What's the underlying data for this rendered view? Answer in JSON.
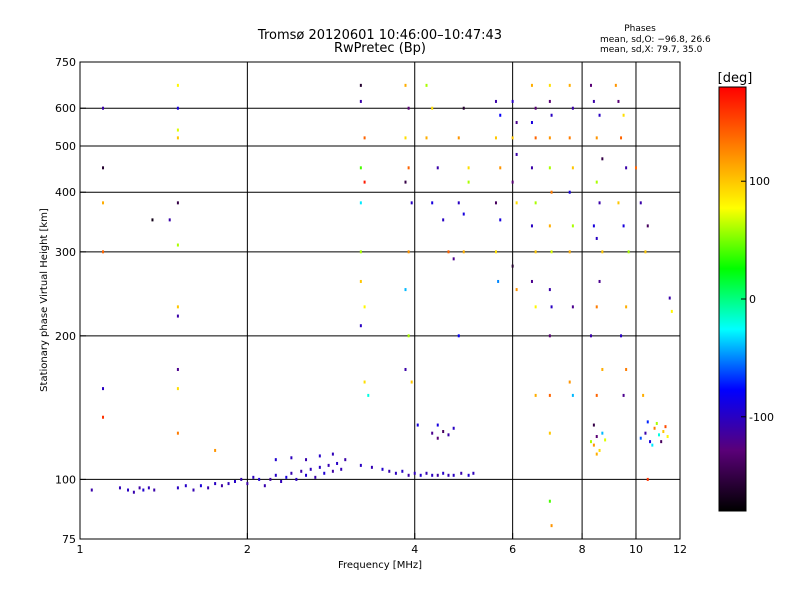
{
  "header": {
    "title_line1": "Tromsø 20120601 10:46:00–10:47:43",
    "title_line2": "RwPretec (Bp)",
    "phases_label": "Phases",
    "phases_line1": "mean, sd,O: −96.8, 26.6",
    "phases_line2": "mean, sd,X:  79.7, 35.0"
  },
  "chart_data": {
    "type": "scatter",
    "xlabel": "Frequency [MHz]",
    "ylabel": "Stationary phase Virtual Height [km]",
    "xscale": "log",
    "yscale": "log",
    "xlim": [
      1,
      12
    ],
    "ylim": [
      75,
      750
    ],
    "x_ticks": [
      1,
      2,
      4,
      6,
      8,
      10,
      12
    ],
    "y_ticks": [
      75,
      100,
      200,
      300,
      400,
      500,
      600,
      750
    ],
    "grid_x": [
      2,
      4,
      6,
      8,
      10
    ],
    "grid_y": [
      100,
      200,
      300,
      400,
      500,
      600
    ],
    "colorbar": {
      "label": "[deg]",
      "range": [
        -180,
        180
      ],
      "ticks": [
        100,
        0,
        -100
      ],
      "colors": [
        "#000000",
        "#5a0078",
        "#0000ff",
        "#00ffff",
        "#00ff00",
        "#ffff00",
        "#ff8000",
        "#ff0000"
      ]
    },
    "points": [
      {
        "x": 1.05,
        "y": 95,
        "p": -110
      },
      {
        "x": 1.18,
        "y": 96,
        "p": -105
      },
      {
        "x": 1.22,
        "y": 95,
        "p": -100
      },
      {
        "x": 1.25,
        "y": 94,
        "p": -108
      },
      {
        "x": 1.28,
        "y": 96,
        "p": -112
      },
      {
        "x": 1.3,
        "y": 95,
        "p": -95
      },
      {
        "x": 1.33,
        "y": 96,
        "p": -104
      },
      {
        "x": 1.36,
        "y": 95,
        "p": -110
      },
      {
        "x": 1.5,
        "y": 96,
        "p": -100
      },
      {
        "x": 1.55,
        "y": 97,
        "p": -98
      },
      {
        "x": 1.6,
        "y": 95,
        "p": -106
      },
      {
        "x": 1.65,
        "y": 97,
        "p": -92
      },
      {
        "x": 1.7,
        "y": 96,
        "p": -108
      },
      {
        "x": 1.75,
        "y": 98,
        "p": -100
      },
      {
        "x": 1.8,
        "y": 97,
        "p": -112
      },
      {
        "x": 1.85,
        "y": 98,
        "p": -104
      },
      {
        "x": 1.9,
        "y": 99,
        "p": -98
      },
      {
        "x": 1.95,
        "y": 100,
        "p": -106
      },
      {
        "x": 2.0,
        "y": 98,
        "p": -110
      },
      {
        "x": 2.05,
        "y": 101,
        "p": -102
      },
      {
        "x": 2.1,
        "y": 100,
        "p": -95
      },
      {
        "x": 2.15,
        "y": 97,
        "p": -108
      },
      {
        "x": 2.2,
        "y": 100,
        "p": -112
      },
      {
        "x": 2.25,
        "y": 102,
        "p": -99
      },
      {
        "x": 2.3,
        "y": 99,
        "p": -104
      },
      {
        "x": 2.35,
        "y": 101,
        "p": -90
      },
      {
        "x": 2.4,
        "y": 103,
        "p": -107
      },
      {
        "x": 2.45,
        "y": 100,
        "p": -101
      },
      {
        "x": 2.5,
        "y": 104,
        "p": -111
      },
      {
        "x": 2.55,
        "y": 102,
        "p": -96
      },
      {
        "x": 2.6,
        "y": 105,
        "p": -103
      },
      {
        "x": 2.65,
        "y": 101,
        "p": -109
      },
      {
        "x": 2.7,
        "y": 106,
        "p": -100
      },
      {
        "x": 2.75,
        "y": 103,
        "p": -94
      },
      {
        "x": 2.8,
        "y": 107,
        "p": -106
      },
      {
        "x": 2.85,
        "y": 104,
        "p": -112
      },
      {
        "x": 2.9,
        "y": 108,
        "p": -99
      },
      {
        "x": 2.95,
        "y": 105,
        "p": -105
      },
      {
        "x": 2.25,
        "y": 110,
        "p": -95
      },
      {
        "x": 2.4,
        "y": 111,
        "p": -102
      },
      {
        "x": 2.55,
        "y": 110,
        "p": -108
      },
      {
        "x": 2.7,
        "y": 112,
        "p": -98
      },
      {
        "x": 2.85,
        "y": 113,
        "p": -104
      },
      {
        "x": 3.0,
        "y": 110,
        "p": -110
      },
      {
        "x": 3.2,
        "y": 107,
        "p": -100
      },
      {
        "x": 3.35,
        "y": 106,
        "p": -106
      },
      {
        "x": 3.5,
        "y": 105,
        "p": -96
      },
      {
        "x": 3.6,
        "y": 104,
        "p": -108
      },
      {
        "x": 3.7,
        "y": 103,
        "p": -102
      },
      {
        "x": 3.8,
        "y": 104,
        "p": -99
      },
      {
        "x": 3.9,
        "y": 102,
        "p": -110
      },
      {
        "x": 4.0,
        "y": 103,
        "p": -104
      },
      {
        "x": 4.1,
        "y": 102,
        "p": -97
      },
      {
        "x": 4.2,
        "y": 103,
        "p": -106
      },
      {
        "x": 4.3,
        "y": 102,
        "p": -101
      },
      {
        "x": 4.4,
        "y": 102,
        "p": -112
      },
      {
        "x": 4.5,
        "y": 103,
        "p": -98
      },
      {
        "x": 4.6,
        "y": 102,
        "p": -105
      },
      {
        "x": 4.7,
        "y": 102,
        "p": -100
      },
      {
        "x": 4.85,
        "y": 103,
        "p": -108
      },
      {
        "x": 5.0,
        "y": 102,
        "p": -95
      },
      {
        "x": 5.1,
        "y": 103,
        "p": -103
      },
      {
        "x": 4.3,
        "y": 125,
        "p": -120
      },
      {
        "x": 4.4,
        "y": 122,
        "p": -130
      },
      {
        "x": 4.5,
        "y": 126,
        "p": -140
      },
      {
        "x": 4.6,
        "y": 124,
        "p": -110
      },
      {
        "x": 4.7,
        "y": 128,
        "p": -100
      },
      {
        "x": 4.4,
        "y": 130,
        "p": -90
      },
      {
        "x": 8.3,
        "y": 120,
        "p": 60
      },
      {
        "x": 8.4,
        "y": 118,
        "p": 120
      },
      {
        "x": 8.5,
        "y": 123,
        "p": -130
      },
      {
        "x": 8.6,
        "y": 115,
        "p": 90
      },
      {
        "x": 8.7,
        "y": 125,
        "p": -40
      },
      {
        "x": 8.5,
        "y": 113,
        "p": 110
      },
      {
        "x": 8.4,
        "y": 130,
        "p": -150
      },
      {
        "x": 8.8,
        "y": 121,
        "p": 70
      },
      {
        "x": 10.2,
        "y": 122,
        "p": -60
      },
      {
        "x": 10.4,
        "y": 125,
        "p": -110
      },
      {
        "x": 10.6,
        "y": 120,
        "p": -90
      },
      {
        "x": 10.8,
        "y": 128,
        "p": 130
      },
      {
        "x": 11.0,
        "y": 124,
        "p": -20
      },
      {
        "x": 11.2,
        "y": 126,
        "p": 100
      },
      {
        "x": 10.9,
        "y": 131,
        "p": 60
      },
      {
        "x": 11.1,
        "y": 120,
        "p": -140
      },
      {
        "x": 11.3,
        "y": 129,
        "p": 150
      },
      {
        "x": 10.5,
        "y": 132,
        "p": -70
      },
      {
        "x": 11.4,
        "y": 123,
        "p": 80
      },
      {
        "x": 10.7,
        "y": 118,
        "p": -30
      },
      {
        "x": 1.1,
        "y": 450,
        "p": -160
      },
      {
        "x": 1.1,
        "y": 380,
        "p": 110
      },
      {
        "x": 1.1,
        "y": 300,
        "p": 140
      },
      {
        "x": 1.1,
        "y": 135,
        "p": 160
      },
      {
        "x": 1.1,
        "y": 155,
        "p": -100
      },
      {
        "x": 1.1,
        "y": 600,
        "p": -110
      },
      {
        "x": 1.5,
        "y": 670,
        "p": 80
      },
      {
        "x": 1.5,
        "y": 600,
        "p": -90
      },
      {
        "x": 1.5,
        "y": 540,
        "p": 70
      },
      {
        "x": 1.5,
        "y": 520,
        "p": 100
      },
      {
        "x": 1.5,
        "y": 380,
        "p": -150
      },
      {
        "x": 1.5,
        "y": 310,
        "p": 60
      },
      {
        "x": 1.5,
        "y": 230,
        "p": 100
      },
      {
        "x": 1.5,
        "y": 220,
        "p": -110
      },
      {
        "x": 1.5,
        "y": 170,
        "p": -120
      },
      {
        "x": 1.5,
        "y": 155,
        "p": 90
      },
      {
        "x": 1.5,
        "y": 125,
        "p": 130
      },
      {
        "x": 1.45,
        "y": 350,
        "p": -110
      },
      {
        "x": 1.35,
        "y": 350,
        "p": -170
      },
      {
        "x": 1.75,
        "y": 115,
        "p": 120
      },
      {
        "x": 3.2,
        "y": 670,
        "p": -160
      },
      {
        "x": 3.2,
        "y": 620,
        "p": -110
      },
      {
        "x": 3.25,
        "y": 520,
        "p": 140
      },
      {
        "x": 3.2,
        "y": 450,
        "p": 40
      },
      {
        "x": 3.25,
        "y": 420,
        "p": 170
      },
      {
        "x": 3.2,
        "y": 380,
        "p": -30
      },
      {
        "x": 3.2,
        "y": 300,
        "p": 60
      },
      {
        "x": 3.2,
        "y": 260,
        "p": 100
      },
      {
        "x": 3.25,
        "y": 230,
        "p": 80
      },
      {
        "x": 3.2,
        "y": 210,
        "p": -100
      },
      {
        "x": 3.25,
        "y": 160,
        "p": 90
      },
      {
        "x": 3.3,
        "y": 150,
        "p": -20
      },
      {
        "x": 3.85,
        "y": 670,
        "p": 110
      },
      {
        "x": 3.9,
        "y": 600,
        "p": -130
      },
      {
        "x": 3.85,
        "y": 520,
        "p": 90
      },
      {
        "x": 3.9,
        "y": 450,
        "p": 140
      },
      {
        "x": 3.85,
        "y": 420,
        "p": -150
      },
      {
        "x": 3.95,
        "y": 380,
        "p": -100
      },
      {
        "x": 3.9,
        "y": 300,
        "p": 120
      },
      {
        "x": 3.85,
        "y": 250,
        "p": -40
      },
      {
        "x": 3.9,
        "y": 200,
        "p": 60
      },
      {
        "x": 3.85,
        "y": 170,
        "p": -110
      },
      {
        "x": 3.95,
        "y": 160,
        "p": 100
      },
      {
        "x": 4.05,
        "y": 130,
        "p": -90
      },
      {
        "x": 4.2,
        "y": 670,
        "p": 60
      },
      {
        "x": 4.3,
        "y": 600,
        "p": 90
      },
      {
        "x": 4.2,
        "y": 520,
        "p": 110
      },
      {
        "x": 4.4,
        "y": 450,
        "p": -110
      },
      {
        "x": 4.3,
        "y": 380,
        "p": -90
      },
      {
        "x": 4.5,
        "y": 350,
        "p": -100
      },
      {
        "x": 4.6,
        "y": 300,
        "p": 140
      },
      {
        "x": 4.7,
        "y": 290,
        "p": -120
      },
      {
        "x": 4.8,
        "y": 380,
        "p": -100
      },
      {
        "x": 4.9,
        "y": 360,
        "p": -90
      },
      {
        "x": 4.9,
        "y": 600,
        "p": -160
      },
      {
        "x": 4.8,
        "y": 520,
        "p": 120
      },
      {
        "x": 5.0,
        "y": 450,
        "p": 90
      },
      {
        "x": 5.0,
        "y": 420,
        "p": 60
      },
      {
        "x": 4.9,
        "y": 300,
        "p": 110
      },
      {
        "x": 4.8,
        "y": 200,
        "p": -80
      },
      {
        "x": 5.6,
        "y": 620,
        "p": -110
      },
      {
        "x": 5.7,
        "y": 580,
        "p": -80
      },
      {
        "x": 5.6,
        "y": 520,
        "p": 100
      },
      {
        "x": 5.7,
        "y": 450,
        "p": 120
      },
      {
        "x": 5.6,
        "y": 380,
        "p": -140
      },
      {
        "x": 5.7,
        "y": 350,
        "p": -90
      },
      {
        "x": 5.6,
        "y": 300,
        "p": 90
      },
      {
        "x": 5.65,
        "y": 260,
        "p": -50
      },
      {
        "x": 6.0,
        "y": 620,
        "p": -100
      },
      {
        "x": 6.1,
        "y": 560,
        "p": -120
      },
      {
        "x": 6.0,
        "y": 520,
        "p": 100
      },
      {
        "x": 6.1,
        "y": 480,
        "p": -110
      },
      {
        "x": 6.0,
        "y": 420,
        "p": -130
      },
      {
        "x": 6.1,
        "y": 380,
        "p": 90
      },
      {
        "x": 6.0,
        "y": 280,
        "p": -160
      },
      {
        "x": 6.1,
        "y": 250,
        "p": 120
      },
      {
        "x": 6.5,
        "y": 670,
        "p": 110
      },
      {
        "x": 6.6,
        "y": 600,
        "p": -130
      },
      {
        "x": 6.5,
        "y": 560,
        "p": -90
      },
      {
        "x": 6.6,
        "y": 520,
        "p": 140
      },
      {
        "x": 6.5,
        "y": 450,
        "p": -110
      },
      {
        "x": 6.6,
        "y": 380,
        "p": 60
      },
      {
        "x": 6.5,
        "y": 340,
        "p": -100
      },
      {
        "x": 6.6,
        "y": 300,
        "p": 100
      },
      {
        "x": 6.5,
        "y": 260,
        "p": -120
      },
      {
        "x": 6.6,
        "y": 230,
        "p": 80
      },
      {
        "x": 6.6,
        "y": 150,
        "p": 110
      },
      {
        "x": 7.0,
        "y": 670,
        "p": 90
      },
      {
        "x": 7.0,
        "y": 620,
        "p": -130
      },
      {
        "x": 7.05,
        "y": 580,
        "p": -100
      },
      {
        "x": 7.0,
        "y": 520,
        "p": 120
      },
      {
        "x": 7.0,
        "y": 450,
        "p": 60
      },
      {
        "x": 7.05,
        "y": 400,
        "p": 130
      },
      {
        "x": 7.0,
        "y": 340,
        "p": 110
      },
      {
        "x": 7.05,
        "y": 300,
        "p": 70
      },
      {
        "x": 7.0,
        "y": 250,
        "p": -110
      },
      {
        "x": 7.05,
        "y": 230,
        "p": -100
      },
      {
        "x": 7.0,
        "y": 200,
        "p": -130
      },
      {
        "x": 7.0,
        "y": 150,
        "p": 140
      },
      {
        "x": 7.0,
        "y": 125,
        "p": 100
      },
      {
        "x": 7.0,
        "y": 90,
        "p": 40
      },
      {
        "x": 7.05,
        "y": 80,
        "p": 120
      },
      {
        "x": 7.6,
        "y": 670,
        "p": 110
      },
      {
        "x": 7.7,
        "y": 600,
        "p": -110
      },
      {
        "x": 7.6,
        "y": 520,
        "p": 130
      },
      {
        "x": 7.7,
        "y": 450,
        "p": 100
      },
      {
        "x": 7.6,
        "y": 400,
        "p": -90
      },
      {
        "x": 7.7,
        "y": 340,
        "p": 60
      },
      {
        "x": 7.6,
        "y": 300,
        "p": 110
      },
      {
        "x": 7.7,
        "y": 230,
        "p": -120
      },
      {
        "x": 7.6,
        "y": 160,
        "p": 120
      },
      {
        "x": 7.7,
        "y": 150,
        "p": -40
      },
      {
        "x": 8.3,
        "y": 670,
        "p": -130
      },
      {
        "x": 8.4,
        "y": 620,
        "p": -110
      },
      {
        "x": 8.6,
        "y": 580,
        "p": -100
      },
      {
        "x": 8.5,
        "y": 520,
        "p": 120
      },
      {
        "x": 8.7,
        "y": 470,
        "p": -150
      },
      {
        "x": 8.5,
        "y": 420,
        "p": 60
      },
      {
        "x": 8.6,
        "y": 380,
        "p": -110
      },
      {
        "x": 8.4,
        "y": 340,
        "p": -90
      },
      {
        "x": 8.5,
        "y": 320,
        "p": -100
      },
      {
        "x": 8.7,
        "y": 300,
        "p": 100
      },
      {
        "x": 8.6,
        "y": 260,
        "p": -120
      },
      {
        "x": 8.5,
        "y": 230,
        "p": 130
      },
      {
        "x": 8.3,
        "y": 200,
        "p": -110
      },
      {
        "x": 8.7,
        "y": 170,
        "p": 110
      },
      {
        "x": 8.5,
        "y": 150,
        "p": 140
      },
      {
        "x": 9.2,
        "y": 670,
        "p": 120
      },
      {
        "x": 9.3,
        "y": 620,
        "p": -130
      },
      {
        "x": 9.5,
        "y": 580,
        "p": 90
      },
      {
        "x": 9.4,
        "y": 520,
        "p": 140
      },
      {
        "x": 9.6,
        "y": 450,
        "p": -110
      },
      {
        "x": 9.3,
        "y": 380,
        "p": 100
      },
      {
        "x": 9.5,
        "y": 340,
        "p": -90
      },
      {
        "x": 9.7,
        "y": 300,
        "p": 60
      },
      {
        "x": 9.6,
        "y": 230,
        "p": 110
      },
      {
        "x": 9.4,
        "y": 200,
        "p": -100
      },
      {
        "x": 9.6,
        "y": 170,
        "p": 130
      },
      {
        "x": 9.5,
        "y": 150,
        "p": -120
      },
      {
        "x": 10.0,
        "y": 450,
        "p": 140
      },
      {
        "x": 10.2,
        "y": 380,
        "p": -110
      },
      {
        "x": 10.5,
        "y": 340,
        "p": -140
      },
      {
        "x": 10.4,
        "y": 300,
        "p": 100
      },
      {
        "x": 10.3,
        "y": 150,
        "p": 110
      },
      {
        "x": 10.5,
        "y": 100,
        "p": 160
      },
      {
        "x": 11.5,
        "y": 240,
        "p": -110
      },
      {
        "x": 11.6,
        "y": 225,
        "p": 80
      }
    ]
  }
}
